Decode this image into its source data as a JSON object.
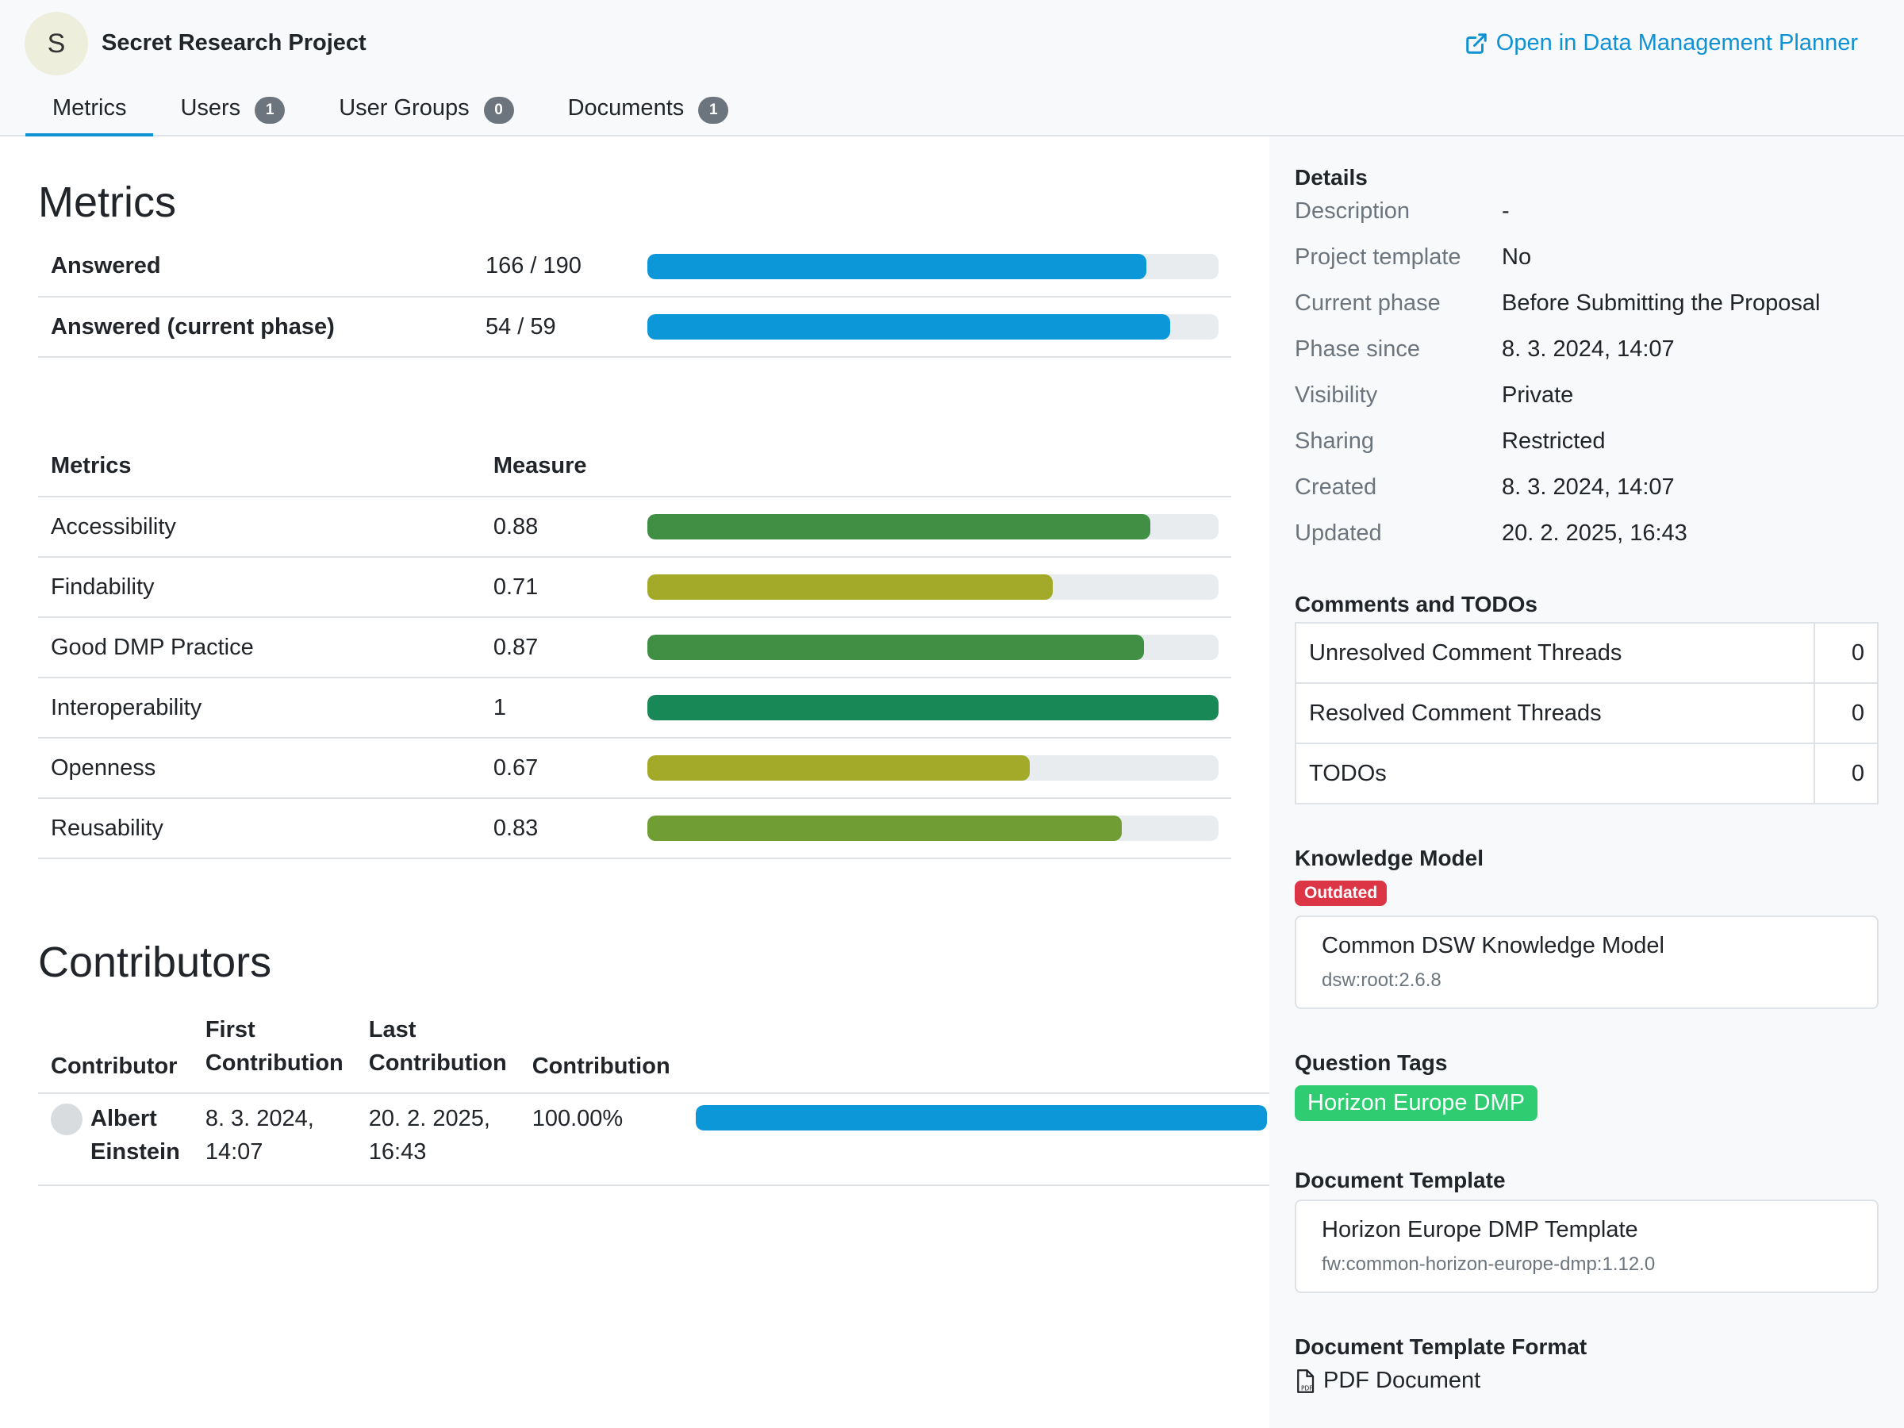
{
  "header": {
    "avatar_letter": "S",
    "project_title": "Secret Research Project",
    "open_link": "Open in Data Management Planner",
    "tabs": [
      {
        "label": "Metrics",
        "count": ""
      },
      {
        "label": "Users",
        "count": "1"
      },
      {
        "label": "User Groups",
        "count": "0"
      },
      {
        "label": "Documents",
        "count": "1"
      }
    ]
  },
  "metrics": {
    "title": "Metrics",
    "progress": [
      {
        "label": "Answered",
        "value": "166 / 190",
        "fraction": 0.874,
        "color": "#0c98d8"
      },
      {
        "label": "Answered (current phase)",
        "value": "54 / 59",
        "fraction": 0.915,
        "color": "#0c98d8"
      }
    ],
    "table_headers": {
      "metric": "Metrics",
      "measure": "Measure"
    },
    "rows": [
      {
        "name": "Accessibility",
        "measure": "0.88",
        "fraction": 0.88,
        "color": "#418e45"
      },
      {
        "name": "Findability",
        "measure": "0.71",
        "fraction": 0.71,
        "color": "#a3aa29"
      },
      {
        "name": "Good DMP Practice",
        "measure": "0.87",
        "fraction": 0.87,
        "color": "#418e45"
      },
      {
        "name": "Interoperability",
        "measure": "1",
        "fraction": 1.0,
        "color": "#178856"
      },
      {
        "name": "Openness",
        "measure": "0.67",
        "fraction": 0.67,
        "color": "#a3aa29"
      },
      {
        "name": "Reusability",
        "measure": "0.83",
        "fraction": 0.83,
        "color": "#719e34"
      }
    ]
  },
  "contributors": {
    "title": "Contributors",
    "headers": {
      "contributor": "Contributor",
      "first_line1": "First",
      "first_line2": "Contribution",
      "last_line1": "Last",
      "last_line2": "Contribution",
      "contribution": "Contribution"
    },
    "rows": [
      {
        "name_line1": "Albert",
        "name_line2": "Einstein",
        "first_line1": "8. 3. 2024,",
        "first_line2": "14:07",
        "last_line1": "20. 2. 2025,",
        "last_line2": "16:43",
        "percent": "100.00%",
        "fraction": 1.0,
        "color": "#0c98d8"
      }
    ]
  },
  "sidebar": {
    "details_heading": "Details",
    "details": [
      {
        "label": "Description",
        "value": "-"
      },
      {
        "label": "Project template",
        "value": "No"
      },
      {
        "label": "Current phase",
        "value": "Before Submitting the Proposal"
      },
      {
        "label": "Phase since",
        "value": "8. 3. 2024, 14:07"
      },
      {
        "label": "Visibility",
        "value": "Private"
      },
      {
        "label": "Sharing",
        "value": "Restricted"
      },
      {
        "label": "Created",
        "value": "8. 3. 2024, 14:07"
      },
      {
        "label": "Updated",
        "value": "20. 2. 2025, 16:43"
      }
    ],
    "comments_heading": "Comments and TODOs",
    "comments": [
      {
        "label": "Unresolved Comment Threads",
        "count": "0"
      },
      {
        "label": "Resolved Comment Threads",
        "count": "0"
      },
      {
        "label": "TODOs",
        "count": "0"
      }
    ],
    "km_heading": "Knowledge Model",
    "km_badge": "Outdated",
    "km_name": "Common DSW Knowledge Model",
    "km_id": "dsw:root:2.6.8",
    "tags_heading": "Question Tags",
    "tag": "Horizon Europe DMP",
    "template_heading": "Document Template",
    "template_name": "Horizon Europe DMP Template",
    "template_id": "fw:common-horizon-europe-dmp:1.12.0",
    "format_heading": "Document Template Format",
    "format": "PDF Document"
  }
}
